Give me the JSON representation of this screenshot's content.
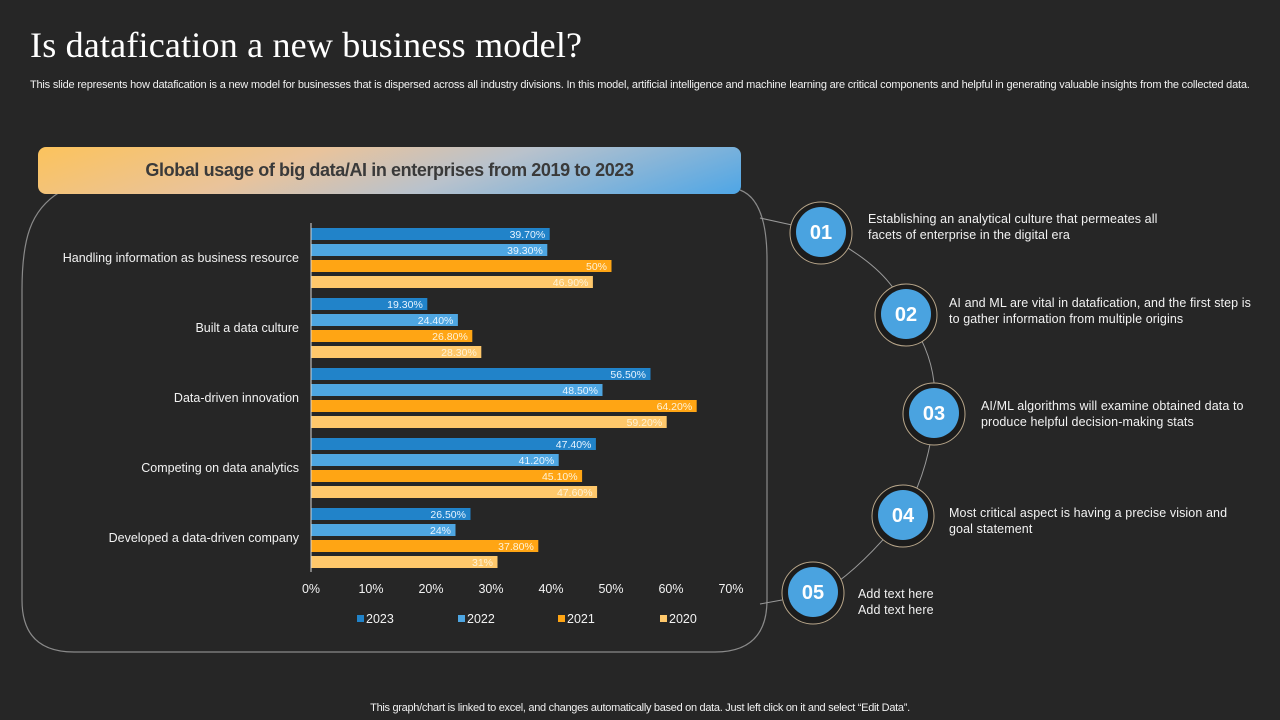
{
  "slide": {
    "title": "Is datafication a new business model?",
    "description": "This slide represents how datafication is a new model for businesses that is dispersed across all industry divisions. In this model, artificial intelligence and machine learning are critical components and helpful in generating valuable insights from the collected data.",
    "footer_note": "This graph/chart is linked to excel, and changes automatically based on data. Just left click on it and select “Edit Data”."
  },
  "colors": {
    "series_2023": "#2183c9",
    "series_2022": "#4ea6e2",
    "series_2021": "#ffa514",
    "series_2020": "#ffc86b",
    "step_circle": "#4aa3e0",
    "background": "#262626"
  },
  "chart_data": {
    "type": "bar",
    "orientation": "horizontal",
    "title": "Global usage of big data/AI in enterprises from 2019 to 2023",
    "xlabel": "",
    "ylabel": "",
    "xlim": [
      0,
      70
    ],
    "x_ticks": [
      "0%",
      "10%",
      "20%",
      "30%",
      "40%",
      "50%",
      "60%",
      "70%"
    ],
    "grid": false,
    "legend_position": "bottom",
    "categories": [
      "Handling information as business resource",
      "Built a data culture",
      "Data-driven innovation",
      "Competing on data analytics",
      "Developed a data-driven company"
    ],
    "series": [
      {
        "name": "2023",
        "values": [
          39.7,
          19.3,
          56.5,
          47.4,
          26.5
        ],
        "labels": [
          "39.70%",
          "19.30%",
          "56.50%",
          "47.40%",
          "26.50%"
        ]
      },
      {
        "name": "2022",
        "values": [
          39.3,
          24.4,
          48.5,
          41.2,
          24.0
        ],
        "labels": [
          "39.30%",
          "24.40%",
          "48.50%",
          "41.20%",
          "24%"
        ]
      },
      {
        "name": "2021",
        "values": [
          50.0,
          26.8,
          64.2,
          45.1,
          37.8
        ],
        "labels": [
          "50%",
          "26.80%",
          "64.20%",
          "45.10%",
          "37.80%"
        ]
      },
      {
        "name": "2020",
        "values": [
          46.9,
          28.3,
          59.2,
          47.6,
          31.0
        ],
        "labels": [
          "46.90%",
          "28.30%",
          "59.20%",
          "47.60%",
          "31%"
        ]
      }
    ]
  },
  "steps": [
    {
      "number": "01",
      "text": "Establishing an analytical culture that permeates all facets of enterprise in the digital era"
    },
    {
      "number": "02",
      "text": "AI and ML are vital in datafication, and the first step is to gather information from multiple origins"
    },
    {
      "number": "03",
      "text": "AI/ML algorithms will examine obtained data to produce helpful decision-making stats"
    },
    {
      "number": "04",
      "text": "Most critical aspect is having a precise vision and goal statement"
    },
    {
      "number": "05",
      "text": "Add text here Add text here"
    }
  ]
}
